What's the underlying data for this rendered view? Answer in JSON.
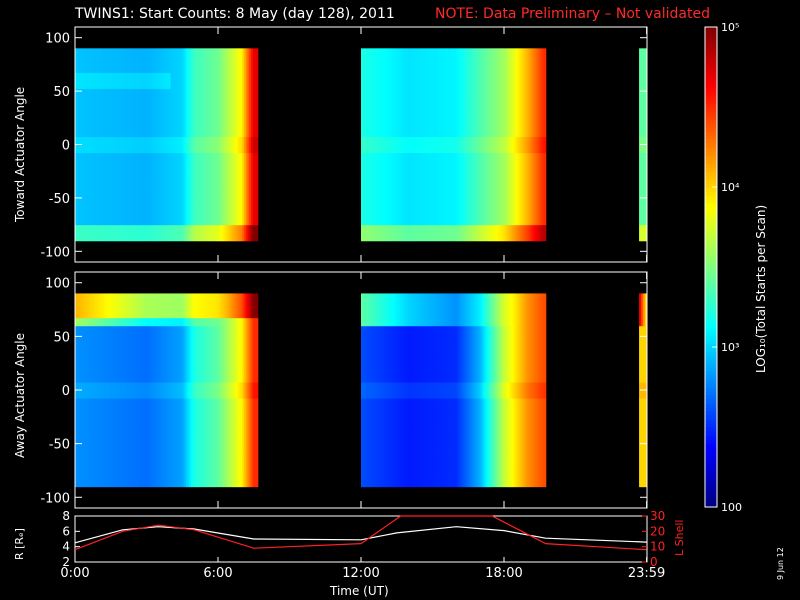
{
  "title": "TWINS1: Start Counts:  8 May (day 128), 2011",
  "note": "NOTE: Data Preliminary – Not validated",
  "panels": {
    "toward": {
      "ylabel": "Toward Actuator Angle"
    },
    "away": {
      "ylabel": "Away Actuator Angle"
    },
    "orbit": {
      "left_label": "R [Rₑ]",
      "right_label": "L Shell"
    }
  },
  "xlabel": "Time (UT)",
  "colorbar": {
    "label": "LOG₁₀(Total Starts per Scan)",
    "tick_labels": [
      "10⁵",
      "10⁴",
      "10³",
      "100"
    ]
  },
  "date_stamp": "9 Jun 12",
  "colors": {
    "note": "#ff2a2a",
    "lshell": "#ff2020",
    "radius": "#ffffff"
  },
  "chart_data": [
    {
      "type": "heatmap",
      "panel": "toward",
      "ylabel": "Toward Actuator Angle",
      "xlim": [
        "0:00",
        "23:59"
      ],
      "ylim": [
        -110,
        110
      ],
      "x_ticks": [
        "0:00",
        "6:00",
        "12:00",
        "18:00",
        "23:59"
      ],
      "y_ticks": [
        "100",
        "50",
        "0",
        "-50",
        "-100"
      ],
      "data_windows": [
        [
          "0:00",
          "7:40"
        ],
        [
          "12:00",
          "19:45"
        ],
        [
          "23:40",
          "23:59"
        ]
      ],
      "angle_range": [
        -90,
        90
      ],
      "colorscale": "log10 counts, 100 to 100000 (blue to red)",
      "time_profile_log10": [
        {
          "t": "0:00",
          "v": 2.95
        },
        {
          "t": "3:00",
          "v": 2.9
        },
        {
          "t": "4:30",
          "v": 3.0
        },
        {
          "t": "5:00",
          "v": 3.3
        },
        {
          "t": "6:00",
          "v": 3.45
        },
        {
          "t": "7:00",
          "v": 3.9
        },
        {
          "t": "7:30",
          "v": 4.7
        },
        {
          "t": "12:00",
          "v": 3.2
        },
        {
          "t": "14:00",
          "v": 3.05
        },
        {
          "t": "16:00",
          "v": 3.1
        },
        {
          "t": "17:00",
          "v": 3.35
        },
        {
          "t": "18:00",
          "v": 3.6
        },
        {
          "t": "19:00",
          "v": 4.1
        },
        {
          "t": "19:40",
          "v": 4.5
        },
        {
          "t": "23:40",
          "v": 3.4
        }
      ]
    },
    {
      "type": "heatmap",
      "panel": "away",
      "ylabel": "Away Actuator Angle",
      "xlim": [
        "0:00",
        "23:59"
      ],
      "ylim": [
        -110,
        110
      ],
      "x_ticks": [
        "0:00",
        "6:00",
        "12:00",
        "18:00",
        "23:59"
      ],
      "y_ticks": [
        "100",
        "50",
        "0",
        "-50",
        "-100"
      ],
      "data_windows": [
        [
          "0:00",
          "7:40"
        ],
        [
          "12:00",
          "19:45"
        ],
        [
          "23:40",
          "23:59"
        ]
      ],
      "angle_range": [
        -90,
        90
      ],
      "colorscale": "log10 counts, 100 to 100000 (blue to red)",
      "time_profile_log10": [
        {
          "t": "0:00",
          "v": 2.8
        },
        {
          "t": "3:00",
          "v": 2.7
        },
        {
          "t": "4:30",
          "v": 2.85
        },
        {
          "t": "5:00",
          "v": 3.2
        },
        {
          "t": "6:00",
          "v": 3.4
        },
        {
          "t": "7:00",
          "v": 3.9
        },
        {
          "t": "7:30",
          "v": 4.5
        },
        {
          "t": "12:00",
          "v": 2.6
        },
        {
          "t": "14:00",
          "v": 2.45
        },
        {
          "t": "16:00",
          "v": 2.5
        },
        {
          "t": "17:00",
          "v": 2.9
        },
        {
          "t": "18:00",
          "v": 3.7
        },
        {
          "t": "19:00",
          "v": 4.2
        },
        {
          "t": "19:40",
          "v": 4.4
        },
        {
          "t": "23:40",
          "v": 4.0
        }
      ]
    },
    {
      "type": "line",
      "panel": "orbit",
      "x_ticks": [
        "0:00",
        "6:00",
        "12:00",
        "18:00",
        "23:59"
      ],
      "y_left": {
        "label": "R [Rₑ]",
        "ticks": [
          "2",
          "4",
          "6",
          "8"
        ],
        "range": [
          2,
          8
        ]
      },
      "y_right": {
        "label": "L Shell",
        "ticks": [
          "0",
          "10",
          "20",
          "30"
        ],
        "range": [
          0,
          30
        ]
      },
      "series": [
        {
          "name": "R [Rₑ]",
          "axis": "left",
          "color": "#ffffff",
          "points": [
            {
              "t": "0:00",
              "v": 4.5
            },
            {
              "t": "2:00",
              "v": 6.2
            },
            {
              "t": "3:30",
              "v": 6.6
            },
            {
              "t": "5:00",
              "v": 6.3
            },
            {
              "t": "7:30",
              "v": 5.0
            },
            {
              "t": "12:00",
              "v": 4.9
            },
            {
              "t": "13:30",
              "v": 5.8
            },
            {
              "t": "16:00",
              "v": 6.6
            },
            {
              "t": "18:00",
              "v": 6.1
            },
            {
              "t": "19:45",
              "v": 5.1
            },
            {
              "t": "23:59",
              "v": 4.6
            }
          ]
        },
        {
          "name": "L Shell",
          "axis": "right",
          "color": "#ff2020",
          "points": [
            {
              "t": "0:00",
              "v": 8
            },
            {
              "t": "2:00",
              "v": 20
            },
            {
              "t": "3:30",
              "v": 24
            },
            {
              "t": "5:00",
              "v": 21
            },
            {
              "t": "7:30",
              "v": 9
            },
            {
              "t": "12:00",
              "v": 12
            },
            {
              "t": "13:40",
              "v": 30
            },
            {
              "t": "17:30",
              "v": 30
            },
            {
              "t": "19:45",
              "v": 12
            },
            {
              "t": "23:59",
              "v": 8
            }
          ]
        }
      ]
    }
  ]
}
